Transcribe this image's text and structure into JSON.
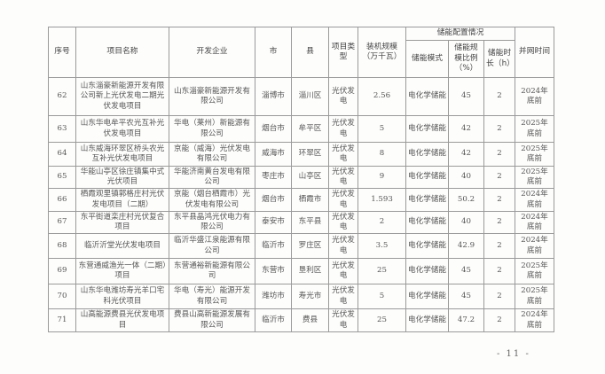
{
  "headers": {
    "seq": "序号",
    "name": "项目名称",
    "company": "开发企业",
    "city": "市",
    "county": "县",
    "type": "项目类型",
    "scale": "装机规模（万千瓦）",
    "storage_group": "储能配置情况",
    "mode": "储能模式",
    "ratio": "储能规模比例（%）",
    "duration": "储能时长（h）",
    "grid_time": "并网时间"
  },
  "rows": [
    {
      "seq": "62",
      "name": "山东淄豪新能源开发有限公司新上光伏发电二期光伏发电项目",
      "company": "山东淄豪新能源开发有限公司",
      "city": "淄博市",
      "county": "淄川区",
      "type": "光伏发电",
      "scale": "2.56",
      "mode": "电化学储能",
      "ratio": "45",
      "duration": "2",
      "grid_time": "2024年底前"
    },
    {
      "seq": "63",
      "name": "山东华电牟平农光互补光伏发电项目",
      "company": "华电（莱州）新能源有限公司",
      "city": "烟台市",
      "county": "牟平区",
      "type": "光伏发电",
      "scale": "5",
      "mode": "电化学储能",
      "ratio": "42",
      "duration": "2",
      "grid_time": "2025年底前"
    },
    {
      "seq": "64",
      "name": "山东威海环翠区桥头农光互补光伏发电项目",
      "company": "京能（威海）光伏发电有限公司",
      "city": "威海市",
      "county": "环翠区",
      "type": "光伏发电",
      "scale": "8",
      "mode": "电化学储能",
      "ratio": "42",
      "duration": "2",
      "grid_time": "2025年底前"
    },
    {
      "seq": "65",
      "name": "华能山亭区徐庄镇集中式光伏项目",
      "company": "华能济南黄台发电有限公司",
      "city": "枣庄市",
      "county": "山亭区",
      "type": "光伏发电",
      "scale": "9",
      "mode": "电化学储能",
      "ratio": "40",
      "duration": "2",
      "grid_time": "2025年底前"
    },
    {
      "seq": "66",
      "name": "栖霞观里镇郭格庄村光伏发电项目（二期）",
      "company": "京能（烟台栖霞市）光伏发电有限公司",
      "city": "烟台市",
      "county": "栖霞市",
      "type": "光伏发电",
      "scale": "1.593",
      "mode": "电化学储能",
      "ratio": "50.2",
      "duration": "2",
      "grid_time": "2024年底前"
    },
    {
      "seq": "67",
      "name": "东平街道栾庄村光伏复合项目",
      "company": "东平县晶鸿光伏电力有限公司",
      "city": "泰安市",
      "county": "东平县",
      "type": "光伏发电",
      "scale": "2",
      "mode": "电化学储能",
      "ratio": "40",
      "duration": "2",
      "grid_time": "2024年底前"
    },
    {
      "seq": "68",
      "name": "临沂沂堂光伏发电项目",
      "company": "临沂华盛江泉能源有限公司",
      "city": "临沂市",
      "county": "罗庄区",
      "type": "光伏发电",
      "scale": "3.5",
      "mode": "电化学储能",
      "ratio": "42.9",
      "duration": "2",
      "grid_time": "2024年底前"
    },
    {
      "seq": "69",
      "name": "东营通威渔光一体（二期）项目",
      "company": "东营通裕新能源有限公司",
      "city": "东营市",
      "county": "垦利区",
      "type": "光伏发电",
      "scale": "25",
      "mode": "电化学储能",
      "ratio": "45",
      "duration": "2",
      "grid_time": "2025年底前"
    },
    {
      "seq": "70",
      "name": "山东华电潍坊寿光羊口宅科光伏项目",
      "company": "华电（寿光）能源开发有限公司",
      "city": "潍坊市",
      "county": "寿光市",
      "type": "光伏发电",
      "scale": "5",
      "mode": "电化学储能",
      "ratio": "45",
      "duration": "2",
      "grid_time": "2025年底前"
    },
    {
      "seq": "71",
      "name": "山高能源费县光伏发电项目",
      "company": "费县山高新能源发展有限公司",
      "city": "临沂市",
      "county": "费县",
      "type": "光伏发电",
      "scale": "25",
      "mode": "电化学储能",
      "ratio": "47.2",
      "duration": "2",
      "grid_time": "2024年底前"
    }
  ],
  "page_number": "- 11 -"
}
